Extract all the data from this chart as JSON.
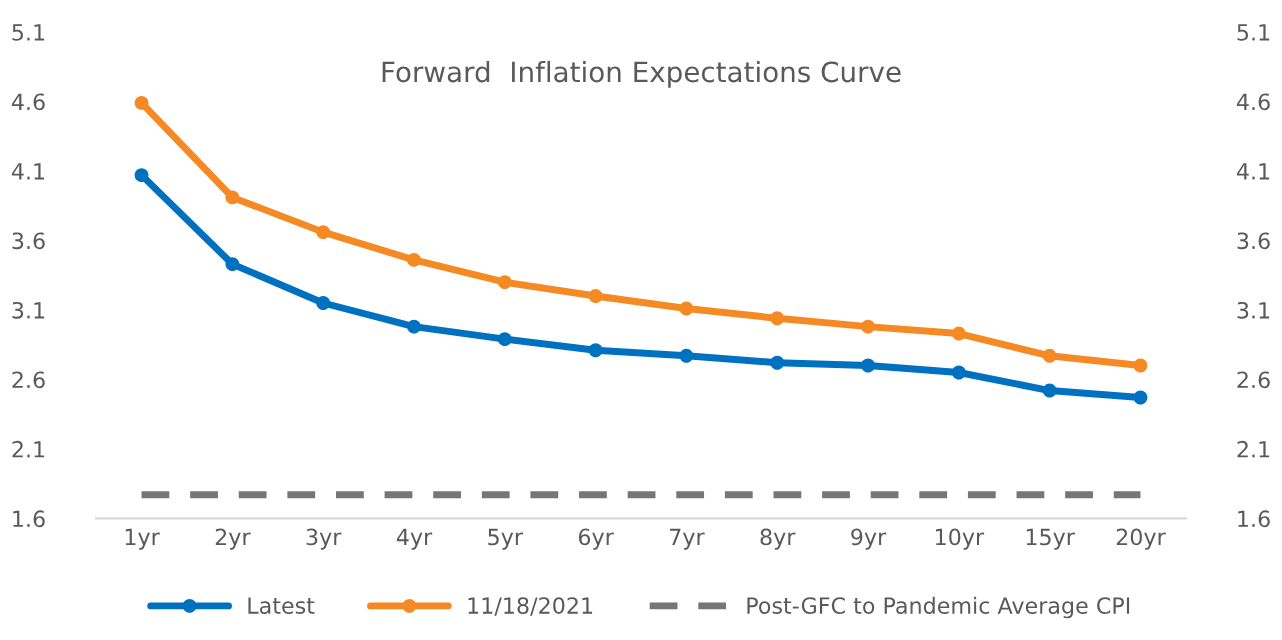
{
  "chart_data": {
    "type": "line",
    "title": "Forward  Inflation Expectations Curve",
    "categories": [
      "1yr",
      "2yr",
      "3yr",
      "4yr",
      "5yr",
      "6yr",
      "7yr",
      "8yr",
      "9yr",
      "10yr",
      "15yr",
      "20yr"
    ],
    "series": [
      {
        "name": "Latest",
        "color": "#0070c0",
        "marker": "circle",
        "values": [
          4.07,
          3.43,
          3.15,
          2.98,
          2.89,
          2.81,
          2.77,
          2.72,
          2.7,
          2.65,
          2.52,
          2.47
        ]
      },
      {
        "name": "11/18/2021",
        "color": "#f58a25",
        "marker": "circle",
        "values": [
          4.59,
          3.91,
          3.66,
          3.46,
          3.3,
          3.2,
          3.11,
          3.04,
          2.98,
          2.93,
          2.77,
          2.7
        ]
      },
      {
        "name": "Post-GFC to Pandemic Average CPI",
        "color": "#767676",
        "marker": "none",
        "line_style": "dashed",
        "values": [
          1.77,
          1.77,
          1.77,
          1.77,
          1.77,
          1.77,
          1.77,
          1.77,
          1.77,
          1.77,
          1.77,
          1.77
        ]
      }
    ],
    "ylim": [
      1.6,
      5.1
    ],
    "yticks": [
      1.6,
      2.1,
      2.6,
      3.1,
      3.6,
      4.1,
      4.6,
      5.1
    ],
    "y2lim": [
      1.6,
      5.1
    ],
    "y2ticks": [
      1.6,
      2.1,
      2.6,
      3.1,
      3.6,
      4.1,
      4.6,
      5.1
    ],
    "legend": "bottom"
  }
}
